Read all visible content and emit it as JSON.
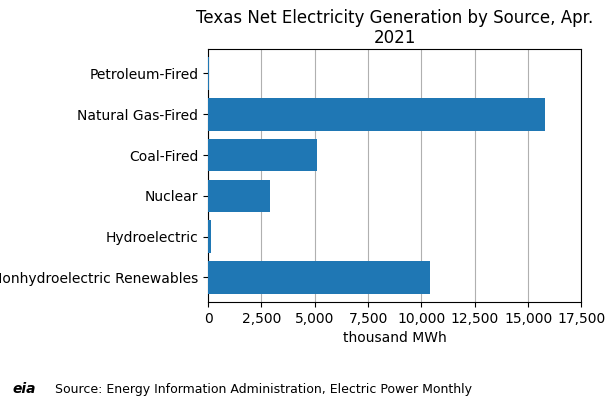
{
  "chart_data": {
    "type": "bar",
    "orientation": "horizontal",
    "title": "Texas Net Electricity Generation by Source, Apr. 2021",
    "categories": [
      "Nonhydroelectric Renewables",
      "Hydroelectric",
      "Nuclear",
      "Coal-Fired",
      "Natural Gas-Fired",
      "Petroleum-Fired"
    ],
    "values": [
      10400,
      120,
      2900,
      5100,
      15800,
      30
    ],
    "x_label": "thousand MWh",
    "xlim": [
      0,
      17500
    ],
    "xticks": [
      0,
      {
        "value": 2500,
        "label": "2,500"
      },
      {
        "value": 5000,
        "label": "5,000"
      },
      {
        "value": 7500,
        "label": "7,500"
      },
      {
        "value": 10000,
        "label": "10,000"
      },
      {
        "value": 12500,
        "label": "12,500"
      },
      {
        "value": 15000,
        "label": "15,000"
      },
      {
        "value": 17500,
        "label": "17,500"
      }
    ],
    "grid": true,
    "annotations": [
      "eia",
      "Source: Energy Information Administration, Electric Power Monthly"
    ]
  }
}
